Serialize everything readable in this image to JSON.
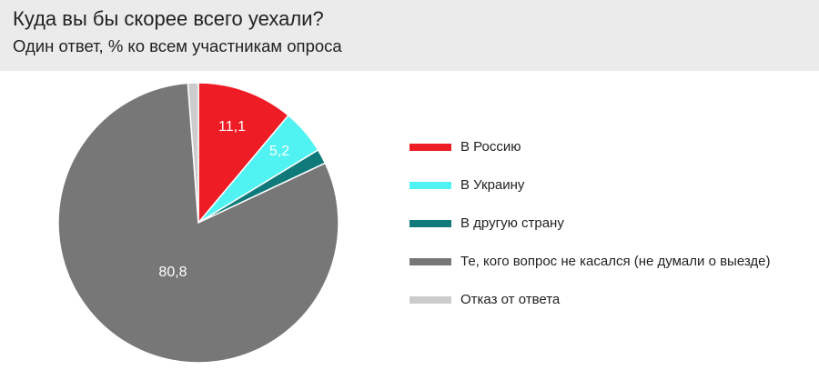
{
  "header": {
    "title": "Куда вы бы скорее всего уехали?",
    "subtitle": "Один ответ, % ко всем участникам опроса"
  },
  "chart_data": {
    "type": "pie",
    "title": "Куда вы бы скорее всего уехали?",
    "subtitle": "Один ответ, % ко всем участникам опроса",
    "legend_position": "right",
    "slices": [
      {
        "name": "В Россию",
        "value": 11.1,
        "label": "11,1",
        "color": "#ee1c25"
      },
      {
        "name": "В Украину",
        "value": 5.2,
        "label": "5,2",
        "color": "#50f2f2"
      },
      {
        "name": "В другую страну",
        "value": 1.7,
        "label": "",
        "color": "#107a7a"
      },
      {
        "name": "Те, кого вопрос не касался (не думали о выезде)",
        "value": 80.8,
        "label": "80,8",
        "color": "#777777"
      },
      {
        "name": "Отказ от ответа",
        "value": 1.2,
        "label": "",
        "color": "#cccccc"
      }
    ]
  }
}
